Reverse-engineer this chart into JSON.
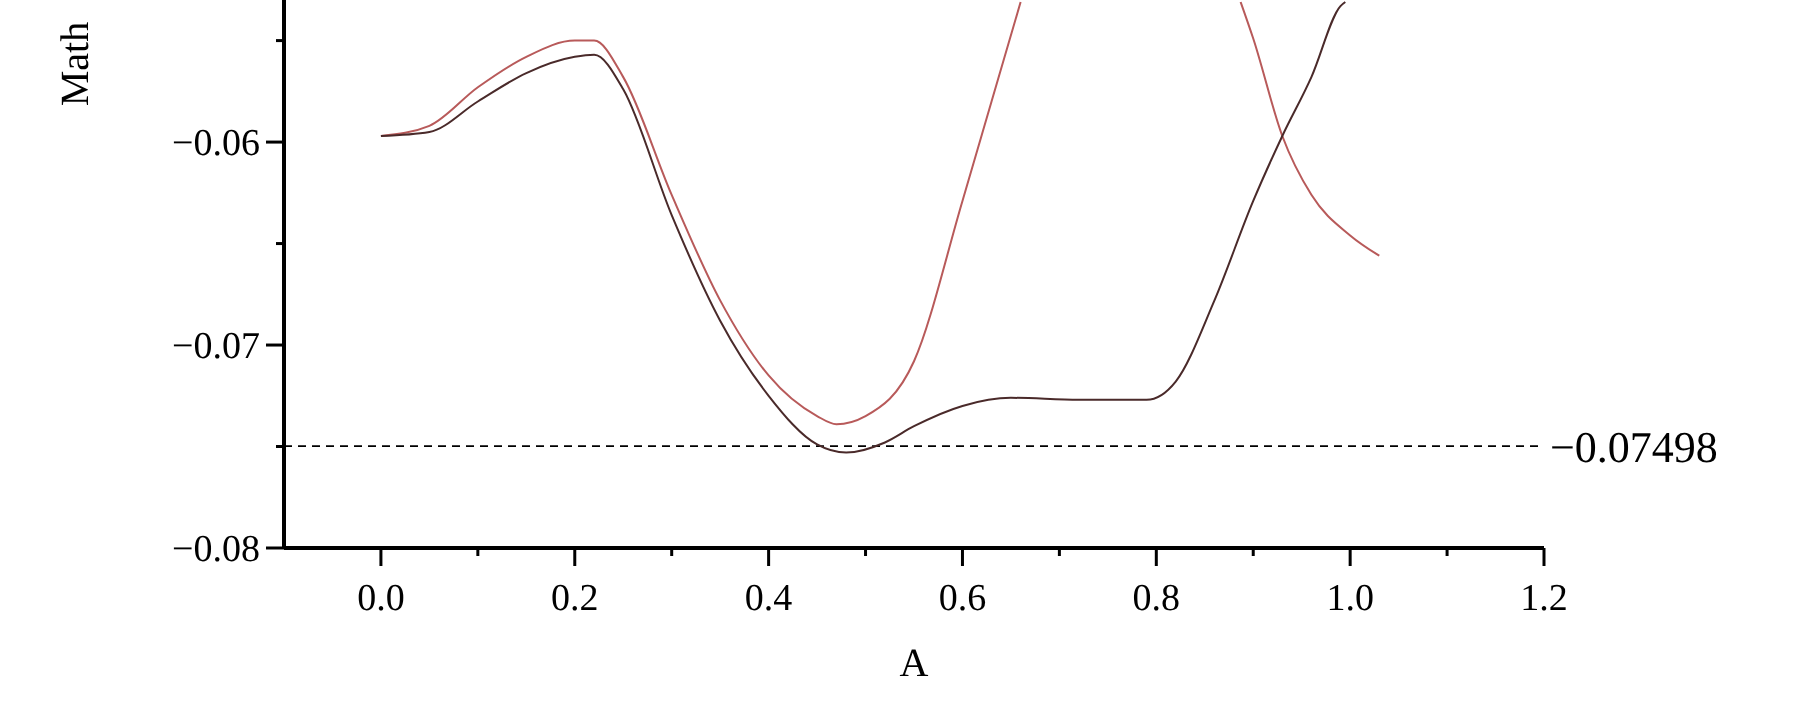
{
  "chart_data": {
    "type": "line",
    "xlabel": "A",
    "ylabel": "Math",
    "xlim": [
      -0.1,
      1.2
    ],
    "ylim": [
      -0.08,
      -0.053
    ],
    "xticks": [
      {
        "value": 0,
        "label": "0.0"
      },
      {
        "value": 0.1,
        "label": null
      },
      {
        "value": 0.2,
        "label": "0.2"
      },
      {
        "value": 0.3,
        "label": null
      },
      {
        "value": 0.4,
        "label": "0.4"
      },
      {
        "value": 0.5,
        "label": null
      },
      {
        "value": 0.6,
        "label": "0.6"
      },
      {
        "value": 0.7,
        "label": null
      },
      {
        "value": 0.8,
        "label": "0.8"
      },
      {
        "value": 0.9,
        "label": null
      },
      {
        "value": 1,
        "label": "1.0"
      },
      {
        "value": 1.1,
        "label": null
      },
      {
        "value": 1.2,
        "label": "1.2"
      }
    ],
    "yticks": [
      {
        "value": -0.08,
        "label": "−0.08"
      },
      {
        "value": -0.075,
        "label": null
      },
      {
        "value": -0.07,
        "label": "−0.07"
      },
      {
        "value": -0.065,
        "label": null
      },
      {
        "value": -0.06,
        "label": "−0.06"
      },
      {
        "value": -0.055,
        "label": null
      }
    ],
    "grid": false,
    "marker": "none",
    "line_style": "solid",
    "series": [
      {
        "color": "#b85a5a",
        "x": [
          0,
          0.05,
          0.1,
          0.15,
          0.2,
          0.22,
          0.25,
          0.3,
          0.35,
          0.4,
          0.45,
          0.47,
          0.5,
          0.55,
          0.6,
          0.63,
          0.66
        ],
        "values": [
          -0.0597,
          -0.0592,
          -0.0573,
          -0.0558,
          -0.055,
          -0.055,
          -0.0568,
          -0.0626,
          -0.0678,
          -0.0715,
          -0.0735,
          -0.0739,
          -0.0735,
          -0.0708,
          -0.0629,
          -0.058,
          -0.0531
        ]
      },
      {
        "color": "#b85a5a",
        "x": [
          0.887,
          0.9,
          0.93,
          0.96,
          1.0,
          1.03
        ],
        "values": [
          -0.0531,
          -0.0549,
          -0.0597,
          -0.0626,
          -0.0646,
          -0.0656
        ]
      },
      {
        "color": "#4a2a2a",
        "x": [
          0,
          0.05,
          0.1,
          0.15,
          0.2,
          0.22,
          0.25,
          0.3,
          0.35,
          0.4,
          0.45,
          0.48,
          0.52,
          0.55,
          0.6,
          0.65,
          0.72,
          0.79,
          0.82,
          0.86,
          0.9,
          0.93,
          0.96,
          0.99,
          0.995
        ],
        "values": [
          -0.0597,
          -0.0595,
          -0.058,
          -0.0566,
          -0.0558,
          -0.0557,
          -0.0574,
          -0.0636,
          -0.0688,
          -0.0725,
          -0.0749,
          -0.0753,
          -0.0748,
          -0.074,
          -0.073,
          -0.0726,
          -0.0727,
          -0.0727,
          -0.0718,
          -0.0678,
          -0.0629,
          -0.0597,
          -0.0568,
          -0.0533,
          -0.0531
        ]
      }
    ],
    "ref_lines": [
      {
        "axis": "y",
        "value": -0.07498,
        "label": "−0.07498",
        "color": "#000000",
        "line_style": "dashed"
      }
    ]
  }
}
